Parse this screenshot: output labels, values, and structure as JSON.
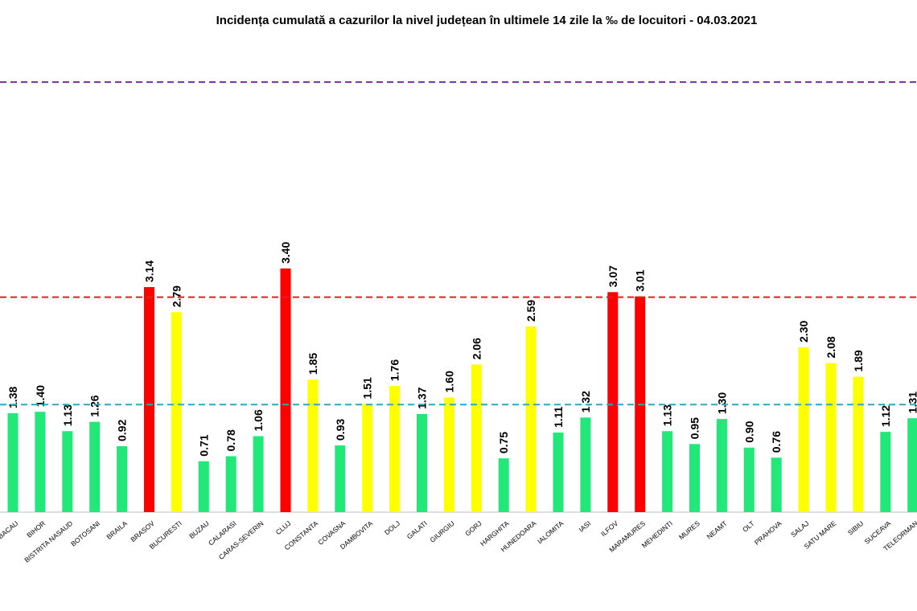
{
  "chart_data": {
    "type": "bar",
    "title": "Incidența cumulată a cazurilor la nivel județean în ultimele 14 zile la ‰ de locuitori - 04.03.2021",
    "categories": [
      "BACAU",
      "BIHOR",
      "BISTRITA NASAUD",
      "BOTOSANI",
      "BRAILA",
      "BRASOV",
      "BUCURESTI",
      "BUZAU",
      "CALARASI",
      "CARAS-SEVERIN",
      "CLUJ",
      "CONSTANTA",
      "COVASNA",
      "DAMBOVITA",
      "DOLJ",
      "GALATI",
      "GIURGIU",
      "GORJ",
      "HARGHITA",
      "HUNEDOARA",
      "IALOMITA",
      "IASI",
      "ILFOV",
      "MARAMURES",
      "MEHEDINTI",
      "MURES",
      "NEAMT",
      "OLT",
      "PRAHOVA",
      "SALAJ",
      "SATU MARE",
      "SIBIU",
      "SUCEAVA",
      "TELEORMAN"
    ],
    "values": [
      1.38,
      1.4,
      1.13,
      1.26,
      0.92,
      3.14,
      2.79,
      0.71,
      0.78,
      1.06,
      3.4,
      1.85,
      0.93,
      1.51,
      1.76,
      1.37,
      1.6,
      2.06,
      0.75,
      2.59,
      1.11,
      1.32,
      3.07,
      3.01,
      1.13,
      0.95,
      1.3,
      0.9,
      0.76,
      2.3,
      2.08,
      1.89,
      1.12,
      1.31
    ],
    "value_labels": [
      "1.38",
      "1.40",
      "1.13",
      "1.26",
      "0.92",
      "3.14",
      "2.79",
      "0.71",
      "0.78",
      "1.06",
      "3.40",
      "1.85",
      "0.93",
      "1.51",
      "1.76",
      "1.37",
      "1.60",
      "2.06",
      "0.75",
      "2.59",
      "1.11",
      "1.32",
      "3.07",
      "3.01",
      "1.13",
      "0.95",
      "1.30",
      "0.90",
      "0.76",
      "2.30",
      "2.08",
      "1.89",
      "1.12",
      "1.31"
    ],
    "colors": [
      "#22e87a",
      "#22e87a",
      "#22e87a",
      "#22e87a",
      "#22e87a",
      "#ff0000",
      "#ffff00",
      "#22e87a",
      "#22e87a",
      "#22e87a",
      "#ff0000",
      "#ffff00",
      "#22e87a",
      "#ffff00",
      "#ffff00",
      "#22e87a",
      "#ffff00",
      "#ffff00",
      "#22e87a",
      "#ffff00",
      "#22e87a",
      "#22e87a",
      "#ff0000",
      "#ff0000",
      "#22e87a",
      "#22e87a",
      "#22e87a",
      "#22e87a",
      "#22e87a",
      "#ffff00",
      "#ffff00",
      "#ffff00",
      "#22e87a",
      "#22e87a"
    ],
    "ylim": [
      0,
      7
    ],
    "reference_lines": [
      {
        "value": 1.5,
        "color": "#2aa8c8"
      },
      {
        "value": 3,
        "color": "#e02020"
      },
      {
        "value": 6,
        "color": "#7030a0"
      }
    ]
  }
}
